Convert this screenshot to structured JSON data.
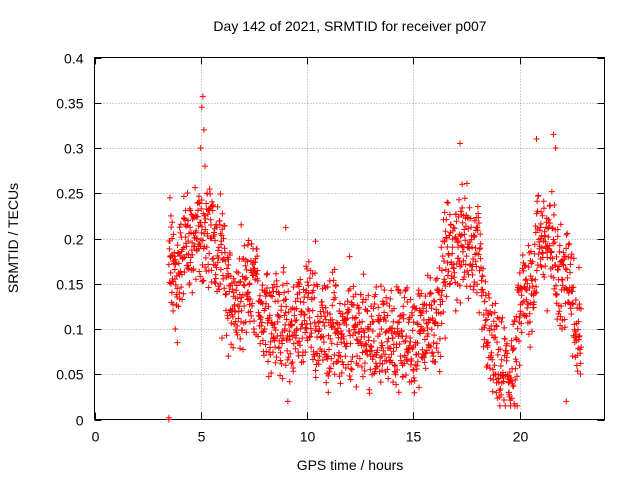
{
  "chart_data": {
    "type": "scatter",
    "title": "Day 142 of 2021, SRMTID for receiver p007",
    "xlabel": "GPS time / hours",
    "ylabel": "SRMTID / TECUs",
    "xlim": [
      0,
      24
    ],
    "ylim": [
      0,
      0.4
    ],
    "x_ticks": [
      0,
      5,
      10,
      15,
      20
    ],
    "x_tick_labels": [
      "0",
      "5",
      "10",
      "15",
      "20"
    ],
    "y_ticks": [
      0,
      0.05,
      0.1,
      0.15,
      0.2,
      0.25,
      0.3,
      0.35,
      0.4
    ],
    "y_tick_labels": [
      "0",
      "0.05",
      "0.1",
      "0.15",
      "0.2",
      "0.25",
      "0.3",
      "0.35",
      "0.4"
    ],
    "grid": true,
    "marker": "plus",
    "series": [
      {
        "name": "SRMTID",
        "color": "#ff0000",
        "x_range": [
          3.5,
          22.9
        ],
        "points": [
          [
            3.5,
            0.0
          ],
          [
            3.5,
            0.002
          ],
          [
            3.55,
            0.245
          ],
          [
            3.6,
            0.225
          ],
          [
            3.65,
            0.2
          ],
          [
            3.7,
            0.175
          ],
          [
            3.6,
            0.15
          ],
          [
            3.7,
            0.12
          ],
          [
            3.8,
            0.1
          ],
          [
            3.9,
            0.085
          ],
          [
            4.0,
            0.16
          ],
          [
            4.2,
            0.19
          ],
          [
            4.4,
            0.17
          ],
          [
            4.6,
            0.14
          ],
          [
            4.8,
            0.2
          ],
          [
            4.9,
            0.24
          ],
          [
            5.0,
            0.3
          ],
          [
            5.05,
            0.345
          ],
          [
            5.1,
            0.357
          ],
          [
            5.15,
            0.32
          ],
          [
            5.2,
            0.28
          ],
          [
            5.3,
            0.25
          ],
          [
            5.5,
            0.2
          ],
          [
            5.7,
            0.16
          ],
          [
            6.0,
            0.09
          ],
          [
            6.3,
            0.07
          ],
          [
            6.6,
            0.12
          ],
          [
            6.9,
            0.215
          ],
          [
            7.2,
            0.14
          ],
          [
            7.5,
            0.1
          ],
          [
            7.8,
            0.13
          ],
          [
            8.1,
            0.16
          ],
          [
            8.5,
            0.08
          ],
          [
            9.0,
            0.06
          ],
          [
            9.1,
            0.02
          ],
          [
            9.0,
            0.212
          ],
          [
            9.5,
            0.11
          ],
          [
            10.0,
            0.09
          ],
          [
            10.4,
            0.197
          ],
          [
            10.7,
            0.13
          ],
          [
            11.0,
            0.03
          ],
          [
            11.3,
            0.05
          ],
          [
            11.6,
            0.09
          ],
          [
            12.0,
            0.18
          ],
          [
            12.4,
            0.06
          ],
          [
            13.0,
            0.07
          ],
          [
            13.5,
            0.1
          ],
          [
            14.0,
            0.12
          ],
          [
            14.5,
            0.06
          ],
          [
            15.0,
            0.08
          ],
          [
            15.5,
            0.11
          ],
          [
            16.0,
            0.13
          ],
          [
            16.5,
            0.09
          ],
          [
            17.0,
            0.12
          ],
          [
            17.2,
            0.305
          ],
          [
            17.3,
            0.26
          ],
          [
            17.4,
            0.21
          ],
          [
            17.6,
            0.16
          ],
          [
            18.0,
            0.14
          ],
          [
            18.5,
            0.08
          ],
          [
            19.0,
            0.05
          ],
          [
            19.5,
            0.03
          ],
          [
            20.0,
            0.06
          ],
          [
            20.5,
            0.08
          ],
          [
            20.8,
            0.31
          ],
          [
            21.0,
            0.2
          ],
          [
            21.3,
            0.12
          ],
          [
            21.6,
            0.315
          ],
          [
            21.7,
            0.3
          ],
          [
            21.8,
            0.21
          ],
          [
            22.0,
            0.1
          ],
          [
            22.2,
            0.02
          ],
          [
            22.5,
            0.07
          ],
          [
            22.8,
            0.168
          ],
          [
            22.9,
            0.08
          ]
        ]
      }
    ]
  }
}
